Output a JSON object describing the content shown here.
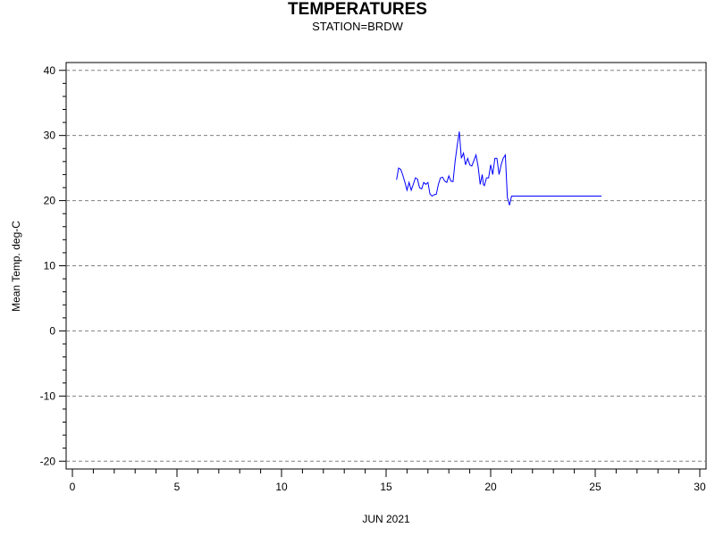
{
  "header": {
    "title": "TEMPERATURES",
    "subtitle": "STATION=BRDW"
  },
  "chart_data": {
    "type": "line",
    "title": "TEMPERATURES",
    "subtitle": "STATION=BRDW",
    "xlabel": "JUN 2021",
    "ylabel": "Mean Temp. deg-C",
    "xlim": [
      -0.3,
      30.3
    ],
    "ylim": [
      -21.2,
      41.2
    ],
    "xticks": [
      0,
      5,
      10,
      15,
      20,
      25,
      30
    ],
    "yticks": [
      -20,
      -10,
      0,
      10,
      20,
      30,
      40
    ],
    "grid": true,
    "line_color": "#0000ff",
    "series": [
      {
        "x": [
          15.5,
          15.6,
          15.7,
          15.8,
          15.9,
          16.0,
          16.1,
          16.2,
          16.3,
          16.4,
          16.5,
          16.6,
          16.7,
          16.8,
          16.9,
          17.0,
          17.1,
          17.2,
          17.3,
          17.4,
          17.5,
          17.6,
          17.7,
          17.8,
          17.9,
          18.0,
          18.1,
          18.2,
          18.3,
          18.4,
          18.5,
          18.6,
          18.7,
          18.8,
          18.9,
          19.0,
          19.1,
          19.2,
          19.3,
          19.4,
          19.5,
          19.6,
          19.65,
          19.7,
          19.8,
          19.9,
          20.0,
          20.1,
          20.2,
          20.3,
          20.4,
          20.5,
          20.6,
          20.7,
          20.8,
          20.9,
          21.0,
          21.1,
          21.2,
          21.3,
          21.4,
          21.5,
          21.6,
          21.7,
          21.8,
          21.9,
          22.0,
          22.1,
          22.2,
          22.3,
          22.4,
          22.5,
          22.6,
          22.7,
          22.8,
          23.0,
          23.5,
          24.0,
          24.5,
          25.0,
          25.3
        ],
        "y": [
          23.2,
          25.0,
          24.8,
          23.9,
          22.8,
          21.6,
          22.8,
          21.6,
          22.5,
          23.5,
          23.3,
          22.0,
          21.8,
          22.8,
          22.5,
          22.8,
          21.0,
          20.7,
          20.9,
          21.0,
          22.5,
          23.5,
          23.6,
          23.0,
          22.8,
          23.8,
          23.0,
          22.9,
          26.0,
          28.5,
          30.6,
          26.5,
          27.3,
          25.5,
          26.5,
          25.5,
          25.3,
          26.2,
          27.0,
          25.2,
          22.5,
          24.0,
          22.5,
          22.3,
          23.5,
          23.5,
          25.5,
          24.0,
          26.5,
          26.5,
          24.0,
          25.5,
          26.5,
          27.0,
          20.5,
          19.3,
          20.7,
          20.7,
          20.7,
          20.7,
          20.7,
          20.7,
          20.7,
          20.7,
          20.7,
          20.7,
          20.7,
          20.7,
          20.7,
          20.7,
          20.7,
          20.7,
          20.7,
          20.7,
          20.7,
          20.7,
          20.7,
          20.7,
          20.7,
          20.7,
          20.7
        ]
      }
    ]
  }
}
